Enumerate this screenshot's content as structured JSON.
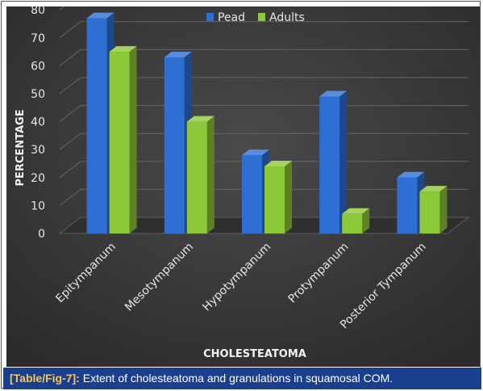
{
  "chart_data": {
    "type": "bar",
    "categories": [
      "Epitympanum",
      "Mesotympanum",
      "Hypotympanum",
      "Protympanum",
      "Posterior Tympanum"
    ],
    "series": [
      {
        "name": "Pead",
        "values": [
          77,
          63,
          28,
          49,
          20
        ],
        "color": "#2e6fd3"
      },
      {
        "name": "Adults",
        "values": [
          65,
          40,
          24,
          7,
          15
        ],
        "color": "#8dc83a"
      }
    ],
    "yticks": [
      "0",
      "10",
      "20",
      "30",
      "40",
      "50",
      "60",
      "70",
      "80"
    ],
    "ylim": [
      0,
      80
    ],
    "xlabel": "CHOLESTEATOMA",
    "ylabel": "PERCENTAGE",
    "legend_position": "top",
    "grid": true,
    "style": "3d-column",
    "background": "#3b3b3b"
  },
  "caption": {
    "label": "[Table/Fig-7]:",
    "text": "Extent of cholesteatoma and granulations in squamosal COM."
  }
}
